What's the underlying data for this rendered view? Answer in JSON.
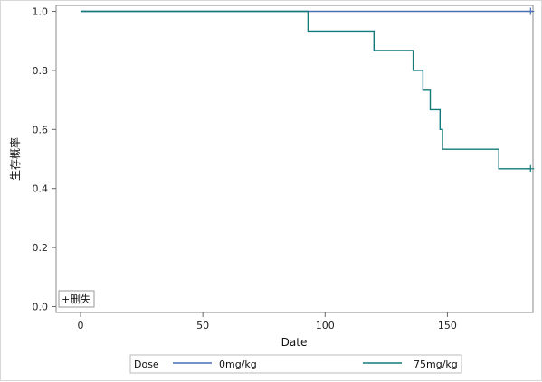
{
  "chart_data": {
    "type": "line",
    "subtype": "kaplan-meier step",
    "xlabel": "Date",
    "ylabel": "生存概率",
    "xlim": [
      -10,
      185
    ],
    "ylim": [
      -0.02,
      1.02
    ],
    "x_ticks": [
      0,
      50,
      100,
      150
    ],
    "y_ticks": [
      0.0,
      0.2,
      0.4,
      0.6,
      0.8,
      1.0
    ],
    "y_tick_labels": [
      "0.0",
      "0.2",
      "0.4",
      "0.6",
      "0.8",
      "1.0"
    ],
    "grid": false,
    "legend_title": "Dose",
    "censor_legend_label": "删失",
    "censor_marker": "+",
    "series": [
      {
        "name": "0mg/kg",
        "color": "#4a6fb5",
        "steps": [
          [
            0,
            1.0
          ],
          [
            185,
            1.0
          ]
        ],
        "censored": [
          [
            184,
            1.0
          ]
        ]
      },
      {
        "name": "75mg/kg",
        "color": "#127a7a",
        "steps": [
          [
            0,
            1.0
          ],
          [
            93,
            0.933
          ],
          [
            120,
            0.867
          ],
          [
            136,
            0.8
          ],
          [
            140,
            0.733
          ],
          [
            143,
            0.667
          ],
          [
            147,
            0.6
          ],
          [
            148,
            0.533
          ],
          [
            171,
            0.467
          ],
          [
            184,
            0.467
          ]
        ],
        "censored": [
          [
            184,
            0.467
          ]
        ]
      }
    ]
  }
}
